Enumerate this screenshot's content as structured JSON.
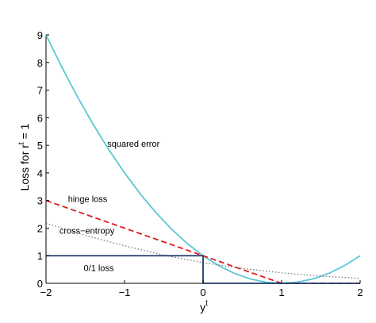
{
  "chart_data": {
    "type": "line",
    "title": "",
    "xlabel": "y",
    "xlabel_superscript": "t",
    "ylabel_parts": {
      "before": "Loss for r",
      "superscript": "t",
      "after": " = 1"
    },
    "xlim": [
      -2,
      2
    ],
    "ylim": [
      0,
      9
    ],
    "xticks": [
      -2,
      -1,
      0,
      1,
      2
    ],
    "xtick_labels": [
      "−2",
      "−1",
      "0",
      "1",
      "2"
    ],
    "yticks": [
      0,
      1,
      2,
      3,
      4,
      5,
      6,
      7,
      8,
      9
    ],
    "ytick_labels": [
      "0",
      "1",
      "2",
      "3",
      "4",
      "5",
      "6",
      "7",
      "8",
      "9"
    ],
    "grid": false,
    "legend": "none",
    "series": [
      {
        "name": "squared error",
        "style": "solid",
        "color": "#5bc7d6",
        "x": [
          -2,
          -1.8,
          -1.6,
          -1.4,
          -1.2,
          -1,
          -0.8,
          -0.6,
          -0.4,
          -0.2,
          0,
          0.2,
          0.4,
          0.6,
          0.8,
          1,
          1.2,
          1.4,
          1.6,
          1.8,
          2
        ],
        "y": [
          9,
          7.84,
          6.76,
          5.76,
          4.84,
          4,
          3.24,
          2.56,
          1.96,
          1.44,
          1,
          0.64,
          0.36,
          0.16,
          0.04,
          0,
          0.04,
          0.16,
          0.36,
          0.64,
          1
        ]
      },
      {
        "name": "hinge loss",
        "style": "dashed",
        "color": "#e01b1b",
        "x": [
          -2,
          1,
          2
        ],
        "y": [
          3,
          0,
          0
        ]
      },
      {
        "name": "cross-entropy",
        "style": "dotted",
        "color": "#777777",
        "x": [
          -2,
          -1.5,
          -1,
          -0.5,
          0,
          0.5,
          1,
          1.5,
          2
        ],
        "y": [
          2.18,
          1.74,
          1.36,
          1.02,
          0.75,
          0.54,
          0.38,
          0.26,
          0.18
        ]
      },
      {
        "name": "0/1 loss",
        "style": "solid",
        "color": "#1f3a68",
        "x": [
          -2,
          0,
          0,
          2
        ],
        "y": [
          1,
          1,
          0,
          0
        ]
      }
    ],
    "annotations": [
      {
        "text": "squared error",
        "x": -1.22,
        "y": 4.95
      },
      {
        "text": "hinge loss",
        "x": -1.72,
        "y": 2.95
      },
      {
        "text": "cross−entropy",
        "x": -1.83,
        "y": 1.8
      },
      {
        "text": "0/1 loss",
        "x": -1.52,
        "y": 0.45
      }
    ]
  }
}
